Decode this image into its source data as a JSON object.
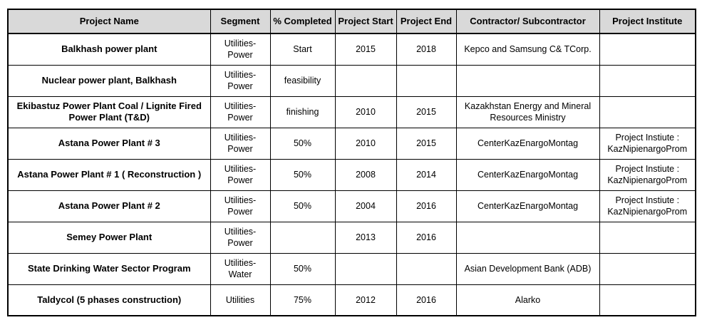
{
  "table": {
    "columns": [
      "Project Name",
      "Segment",
      "% Completed",
      "Project Start",
      "Project End",
      "Contractor/ Subcontractor",
      "Project Institute"
    ],
    "rows": [
      {
        "name": "Balkhash power plant",
        "segment": "Utilities-Power",
        "completed": "Start",
        "start": "2015",
        "end": "2018",
        "contractor": "Kepco and Samsung C& TCorp.",
        "institute": ""
      },
      {
        "name": "Nuclear power plant, Balkhash",
        "segment": "Utilities-Power",
        "completed": "feasibility",
        "start": "",
        "end": "",
        "contractor": "",
        "institute": ""
      },
      {
        "name": "Ekibastuz Power Plant Coal / Lignite Fired Power Plant (T&D)",
        "segment": "Utilities-Power",
        "completed": "finishing",
        "start": "2010",
        "end": "2015",
        "contractor": "Kazakhstan Energy and Mineral Resources Ministry",
        "institute": ""
      },
      {
        "name": "Astana Power Plant # 3",
        "segment": "Utilities-Power",
        "completed": "50%",
        "start": "2010",
        "end": "2015",
        "contractor": "CenterKazEnargoMontag",
        "institute": "Project Instiute : KazNipienargoProm"
      },
      {
        "name": "Astana Power Plant # 1 ( Reconstruction )",
        "segment": "Utilities-Power",
        "completed": "50%",
        "start": "2008",
        "end": "2014",
        "contractor": "CenterKazEnargoMontag",
        "institute": "Project Instiute : KazNipienargoProm"
      },
      {
        "name": "Astana Power Plant # 2",
        "segment": "Utilities-Power",
        "completed": "50%",
        "start": "2004",
        "end": "2016",
        "contractor": "CenterKazEnargoMontag",
        "institute": "Project Instiute : KazNipienargoProm"
      },
      {
        "name": "Semey Power Plant",
        "segment": "Utilities-Power",
        "completed": "",
        "start": "2013",
        "end": "2016",
        "contractor": "",
        "institute": ""
      },
      {
        "name": "State Drinking Water Sector Program",
        "segment": "Utilities-Water",
        "completed": "50%",
        "start": "",
        "end": "",
        "contractor": "Asian Development Bank (ADB)",
        "institute": ""
      },
      {
        "name": "Taldycol (5 phases construction)",
        "segment": "Utilities",
        "completed": "75%",
        "start": "2012",
        "end": "2016",
        "contractor": "Alarko",
        "institute": ""
      }
    ]
  }
}
